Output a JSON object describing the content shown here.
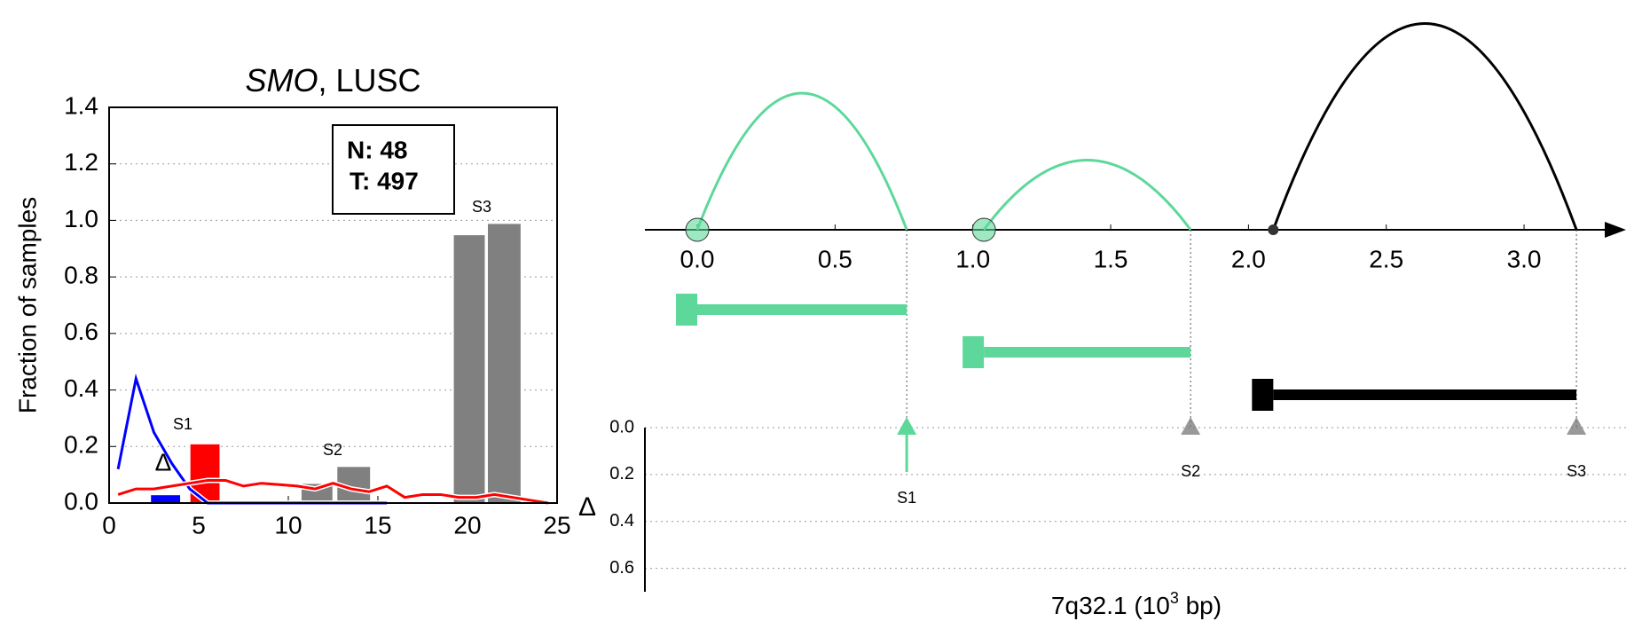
{
  "chart_data": [
    {
      "type": "bar_line",
      "title_parts": [
        "SMO",
        ", LUSC"
      ],
      "ylabel": "Fraction of samples",
      "xlim": [
        0,
        25
      ],
      "ylim": [
        0,
        1.4
      ],
      "xticks": [
        0,
        5,
        10,
        15,
        20,
        25
      ],
      "yticks": [
        {
          "value": 0,
          "label": "0.0"
        },
        0.2,
        0.4,
        0.6,
        0.8,
        {
          "value": 1,
          "label": "1.0"
        },
        1.2,
        1.4
      ],
      "grid": true,
      "box_text": [
        "N: 48",
        "T: 497"
      ],
      "annotations": [
        "S1",
        "S2",
        "S3",
        "Δ"
      ],
      "bars": [
        {
          "color": "#808080",
          "x0": [
            10.7,
            12.7,
            19.2,
            21.1
          ],
          "x1": [
            12.5,
            14.6,
            21.0,
            23.0
          ],
          "values": [
            0.07,
            0.13,
            0.95,
            0.99
          ]
        },
        {
          "color": "#ff0000",
          "x0": [
            4.5
          ],
          "x1": [
            6.2
          ],
          "values": [
            0.21
          ]
        },
        {
          "color": "#0000ff",
          "x0": [
            2.3
          ],
          "x1": [
            4.0
          ],
          "values": [
            0.03
          ]
        }
      ],
      "lines": [
        {
          "color": "#0000ff",
          "x": [
            0.5,
            1.5,
            2.5,
            3.5,
            4.5,
            5.5,
            6.5,
            7.5,
            8.5,
            9.5,
            10.5,
            11.5,
            12.5,
            13.5,
            14.5,
            15.5
          ],
          "values": [
            0.12,
            0.44,
            0.25,
            0.14,
            0.05,
            0,
            0,
            0,
            0,
            0,
            0,
            0,
            0,
            0,
            0,
            0
          ]
        },
        {
          "color": "#ff0000",
          "x": [
            0.5,
            1.5,
            2.5,
            3.5,
            4.5,
            5.5,
            6.5,
            7.5,
            8.5,
            9.5,
            10.5,
            11.5,
            12.5,
            13.5,
            14.5,
            15.5,
            16.5,
            17.5,
            18.5,
            19.5,
            20.5,
            21.5,
            22.5,
            23.5,
            24.5
          ],
          "values": [
            0.03,
            0.05,
            0.05,
            0.06,
            0.07,
            0.08,
            0.08,
            0.06,
            0.07,
            0.065,
            0.06,
            0.05,
            0.07,
            0.05,
            0.04,
            0.06,
            0.02,
            0.03,
            0.03,
            0.02,
            0.02,
            0.03,
            0.02,
            0.01,
            0
          ]
        }
      ]
    },
    {
      "type": "arc",
      "xlim": [
        -0.19,
        3.37
      ],
      "xticks": [
        {
          "value": 0,
          "label": "0.0"
        },
        0.5,
        {
          "value": 1,
          "label": "1.0"
        },
        1.5,
        {
          "value": 2,
          "label": "2.0"
        },
        2.5,
        {
          "value": 3,
          "label": "3.0"
        }
      ],
      "xlabel_parts": [
        "7q32.1 (10",
        "3",
        " bp)"
      ],
      "ylabel": "Δ",
      "ylim": [
        0,
        0.7
      ],
      "y_inverted": true,
      "yticks": [
        {
          "value": 0,
          "label": "0.0"
        },
        0.2,
        0.4,
        0.6
      ],
      "grid": true,
      "elements": [
        {
          "start": 0,
          "end": 0.76,
          "height": 1.0,
          "color": "#5dd89a",
          "start_marker": "circle"
        },
        {
          "start": 1.04,
          "end": 1.79,
          "height": 0.51,
          "color": "#5dd89a",
          "start_marker": "circle"
        },
        {
          "start": 2.09,
          "end": 3.19,
          "height": 1.51,
          "color": "#000000",
          "start_marker": "dot"
        }
      ],
      "markers": [
        {
          "label": "S1",
          "x": 0.76,
          "value": 0,
          "color": "#5dd89a",
          "arrow": true
        },
        {
          "label": "S2",
          "x": 1.79,
          "value": 0,
          "color": "#777777",
          "arrow": false
        },
        {
          "label": "S3",
          "x": 3.19,
          "value": 0,
          "color": "#777777",
          "arrow": false
        }
      ]
    }
  ]
}
